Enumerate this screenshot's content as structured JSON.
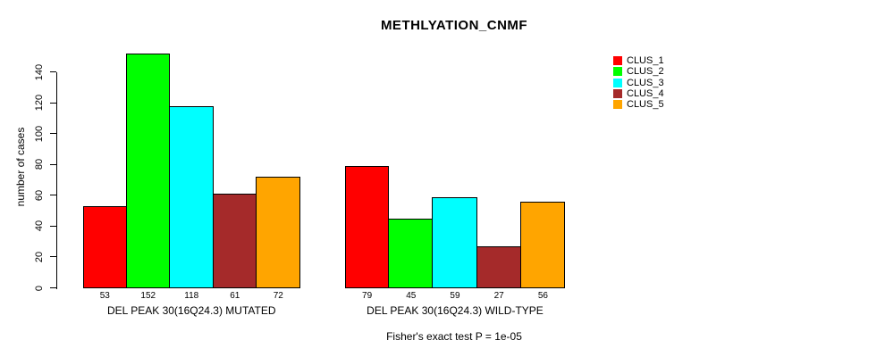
{
  "title": "METHLYATION_CNMF",
  "chart_data": {
    "type": "bar",
    "title": "METHLYATION_CNMF",
    "xlabel": "",
    "ylabel": "number of cases",
    "categories": [
      "DEL PEAK 30(16Q24.3) MUTATED",
      "DEL PEAK 30(16Q24.3) WILD-TYPE"
    ],
    "series": [
      {
        "name": "CLUS_1",
        "color": "#FF0000",
        "values": [
          53,
          79
        ]
      },
      {
        "name": "CLUS_2",
        "color": "#00FF00",
        "values": [
          152,
          45
        ]
      },
      {
        "name": "CLUS_3",
        "color": "#00FFFF",
        "values": [
          118,
          59
        ]
      },
      {
        "name": "CLUS_4",
        "color": "#A52A2A",
        "values": [
          61,
          27
        ]
      },
      {
        "name": "CLUS_5",
        "color": "#FFA500",
        "values": [
          72,
          56
        ]
      }
    ],
    "bar_value_labels": {
      "DEL PEAK 30(16Q24.3) MUTATED": [
        53,
        152,
        118,
        61,
        72
      ],
      "DEL PEAK 30(16Q24.3) WILD-TYPE": [
        79,
        45,
        59,
        27,
        56
      ]
    },
    "yticks": [
      0,
      20,
      40,
      60,
      80,
      100,
      120,
      140
    ],
    "ylim": [
      0,
      140
    ],
    "grid": false,
    "legend_position": "right",
    "legend_entries": [
      "CLUS_1",
      "CLUS_2",
      "CLUS_3",
      "CLUS_4",
      "CLUS_5"
    ],
    "annotation": "Fisher's exact test P = 1e-05",
    "axis_color": "#000000",
    "background_color": "#FFFFFF"
  }
}
